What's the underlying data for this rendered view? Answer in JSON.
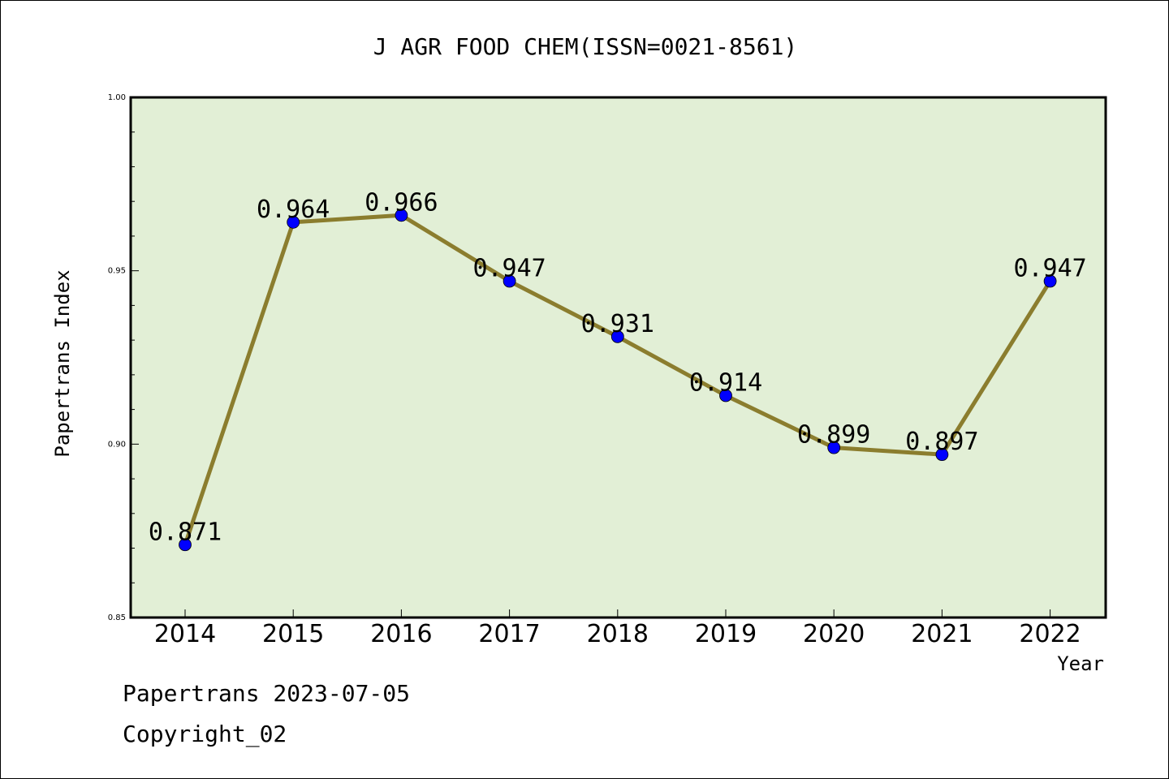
{
  "chart_data": {
    "type": "line",
    "title": "J AGR FOOD CHEM(ISSN=0021-8561)",
    "xlabel": "Year",
    "ylabel": "Papertrans Index",
    "categories": [
      "2014",
      "2015",
      "2016",
      "2017",
      "2018",
      "2019",
      "2020",
      "2021",
      "2022"
    ],
    "series": [
      {
        "values": [
          0.871,
          0.964,
          0.966,
          0.947,
          0.931,
          0.914,
          0.899,
          0.897,
          0.947
        ],
        "labels": [
          "0.871",
          "0.964",
          "0.966",
          "0.947",
          "0.931",
          "0.914",
          "0.899",
          "0.897",
          "0.947"
        ]
      }
    ],
    "ylim": [
      0.85,
      1.0
    ],
    "yticks": [
      "0.85",
      "0.90",
      "0.95",
      "1.00"
    ],
    "yticks_values": [
      0.85,
      0.9,
      0.95,
      1.0
    ],
    "grid": false,
    "colors": {
      "plot_background": "#e2efd6",
      "line": "#8b7d2e",
      "marker": "#0000ff"
    }
  },
  "footer": {
    "line1": "Papertrans 2023-07-05",
    "line2": "Copyright_02"
  }
}
